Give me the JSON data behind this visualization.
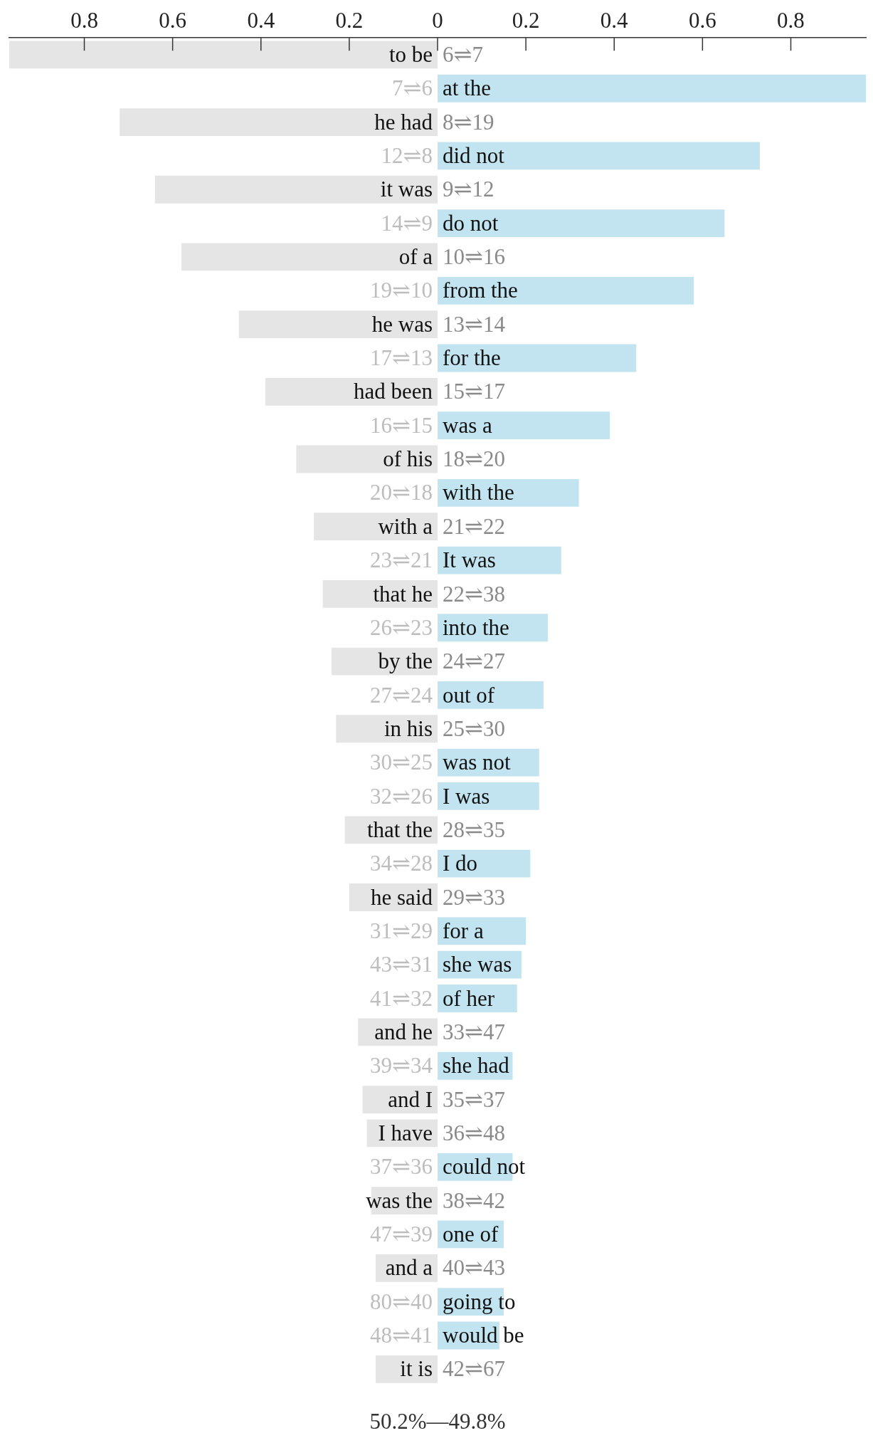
{
  "chart_data": {
    "type": "bar",
    "orientation": "horizontal",
    "legend": false,
    "grid": false,
    "categories": [
      "to be",
      "at the",
      "he had",
      "did not",
      "it was",
      "do not",
      "of a",
      "from the",
      "he was",
      "for the",
      "had been",
      "was a",
      "of his",
      "with the",
      "with a",
      "It was",
      "that he",
      "into the",
      "by the",
      "out of",
      "in his",
      "was not",
      "I was",
      "that the",
      "I do",
      "he said",
      "for a",
      "she was",
      "of her",
      "and he",
      "she had",
      "and I",
      "I have",
      "could not",
      "was the",
      "one of",
      "and a",
      "going to",
      "would be",
      "it is"
    ],
    "series": [
      {
        "color": "#e5e5e5",
        "values": [
          -0.97,
          null,
          -0.72,
          null,
          -0.64,
          null,
          -0.58,
          null,
          -0.45,
          null,
          -0.39,
          null,
          -0.32,
          null,
          -0.28,
          null,
          -0.26,
          null,
          -0.24,
          null,
          -0.23,
          null,
          null,
          -0.21,
          null,
          -0.2,
          null,
          null,
          null,
          -0.18,
          null,
          -0.17,
          -0.16,
          null,
          -0.15,
          null,
          -0.14,
          null,
          null,
          -0.14
        ]
      },
      {
        "color": "#c2e4f0",
        "values": [
          null,
          0.97,
          null,
          0.73,
          null,
          0.65,
          null,
          0.58,
          null,
          0.45,
          null,
          0.39,
          null,
          0.32,
          null,
          0.28,
          null,
          0.25,
          null,
          0.24,
          null,
          0.23,
          0.23,
          null,
          0.21,
          null,
          0.2,
          0.19,
          0.18,
          null,
          0.17,
          null,
          null,
          0.17,
          null,
          0.15,
          null,
          0.15,
          0.14,
          null
        ]
      }
    ],
    "xlim": [
      -0.97,
      0.97
    ],
    "xticks": [
      {
        "value": -0.8,
        "label": "0.8"
      },
      {
        "value": -0.6,
        "label": "0.6"
      },
      {
        "value": -0.4,
        "label": "0.4"
      },
      {
        "value": -0.2,
        "label": "0.2"
      },
      0,
      0.2,
      0.4,
      0.6,
      0.8
    ],
    "annotations": [
      "6⇌7",
      "7⇌6",
      "8⇌19",
      "12⇌8",
      "9⇌12",
      "14⇌9",
      "10⇌16",
      "19⇌10",
      "13⇌14",
      "17⇌13",
      "15⇌17",
      "16⇌15",
      "18⇌20",
      "20⇌18",
      "21⇌22",
      "23⇌21",
      "22⇌38",
      "26⇌23",
      "24⇌27",
      "27⇌24",
      "25⇌30",
      "30⇌25",
      "32⇌26",
      "28⇌35",
      "34⇌28",
      "29⇌33",
      "31⇌29",
      "43⇌31",
      "41⇌32",
      "33⇌47",
      "39⇌34",
      "35⇌37",
      "36⇌48",
      "37⇌36",
      "38⇌42",
      "47⇌39",
      "40⇌43",
      "80⇌40",
      "48⇌41",
      "42⇌67",
      "50.2%—49.8%"
    ]
  }
}
